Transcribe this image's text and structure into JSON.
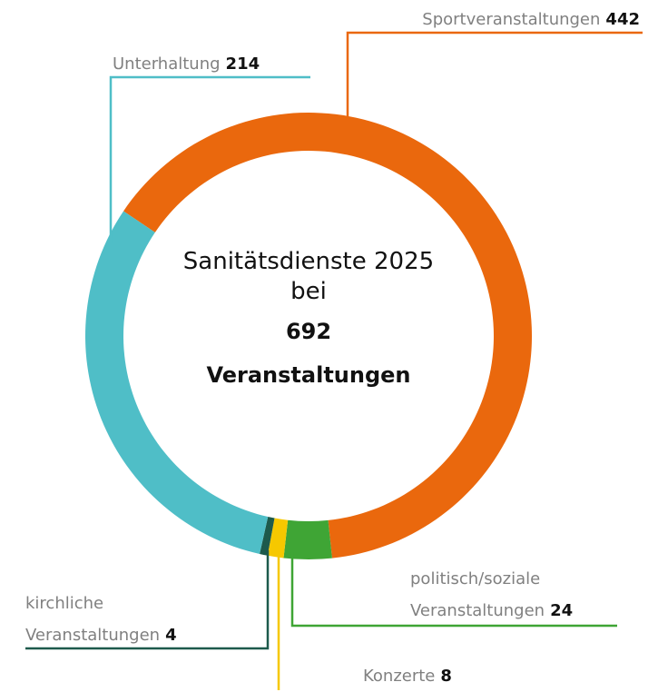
{
  "chart_data": {
    "type": "donut",
    "categories": [
      "Sportveranstaltungen",
      "politisch/soziale Veranstaltungen",
      "Konzerte",
      "kirchliche Veranstaltungen",
      "Unterhaltung"
    ],
    "values": [
      442,
      24,
      8,
      4,
      214
    ],
    "colors": [
      "#ea680d",
      "#3fa535",
      "#f6c800",
      "#1d5a4c",
      "#4fbec7"
    ],
    "center_text": "Sanitätsdienste 2025 bei",
    "total": 692,
    "total_label": "Veranstaltungen"
  }
}
